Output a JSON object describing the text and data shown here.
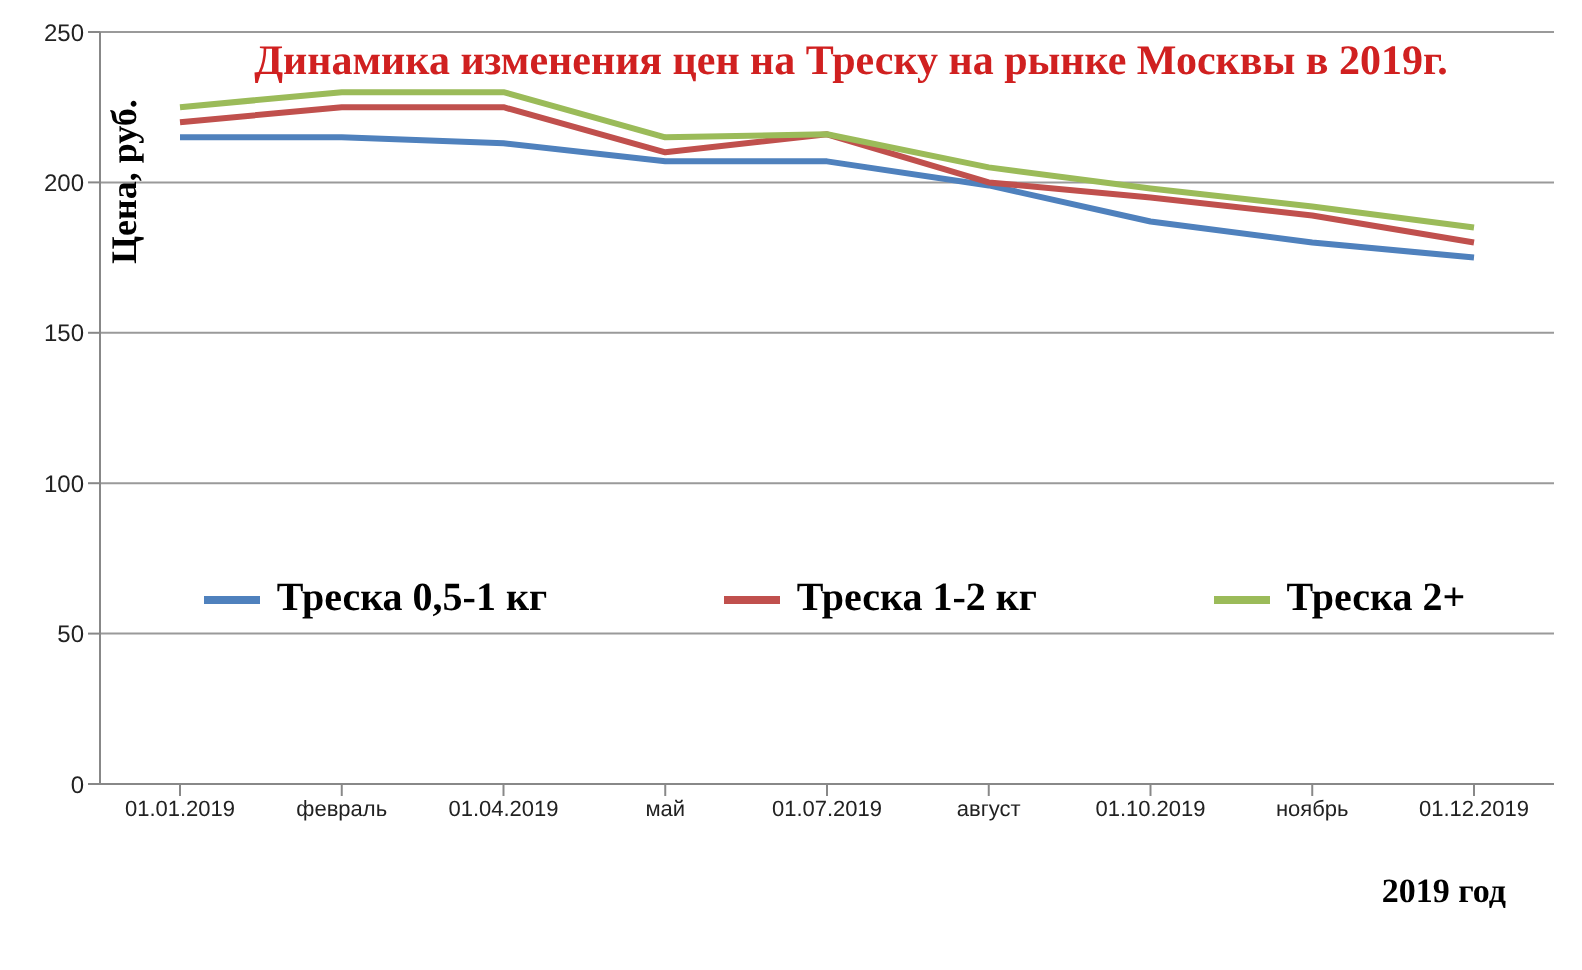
{
  "chart_data": {
    "type": "line",
    "title": "Динамика изменения цен на Треску на рынке Москвы в 2019г.",
    "xlabel": "2019 год",
    "ylabel": "Цена, руб.",
    "categories": [
      "01.01.2019",
      "февраль",
      "01.04.2019",
      "май",
      "01.07.2019",
      "август",
      "01.10.2019",
      "ноябрь",
      "01.12.2019"
    ],
    "series": [
      {
        "name": "Треска 0,5-1 кг",
        "color": "#4f81bd",
        "values": [
          215,
          215,
          213,
          207,
          207,
          199,
          187,
          180,
          175
        ]
      },
      {
        "name": "Треска 1-2 кг",
        "color": "#c0504d",
        "values": [
          220,
          225,
          225,
          210,
          216,
          200,
          195,
          189,
          180
        ]
      },
      {
        "name": "Треска 2+",
        "color": "#9bbb59",
        "values": [
          225,
          230,
          230,
          215,
          216,
          205,
          198,
          192,
          185
        ]
      }
    ],
    "ylim": [
      0,
      250
    ],
    "yticks": [
      0,
      50,
      100,
      150,
      200,
      250
    ],
    "grid": "y",
    "legend": "center",
    "marker": "none",
    "line_style": "solid"
  }
}
